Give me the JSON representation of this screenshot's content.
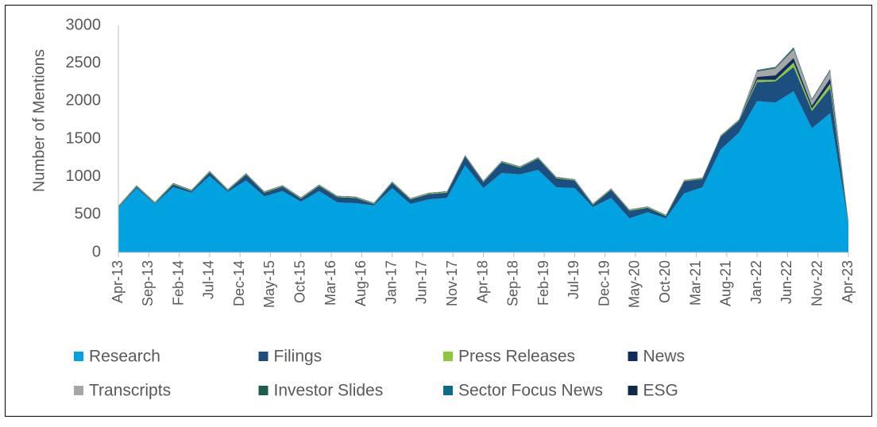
{
  "chart_data": {
    "type": "stacked-area",
    "y_label": "Number of Mentions",
    "x": [
      "2013-04",
      "2013-07",
      "2013-10",
      "2014-01",
      "2014-04",
      "2014-07",
      "2014-10",
      "2015-01",
      "2015-04",
      "2015-07",
      "2015-10",
      "2016-01",
      "2016-04",
      "2016-07",
      "2016-10",
      "2017-01",
      "2017-04",
      "2017-07",
      "2017-10",
      "2018-01",
      "2018-04",
      "2018-07",
      "2018-10",
      "2019-01",
      "2019-04",
      "2019-07",
      "2019-10",
      "2020-01",
      "2020-04",
      "2020-07",
      "2020-10",
      "2021-01",
      "2021-04",
      "2021-07",
      "2021-10",
      "2022-01",
      "2022-04",
      "2022-07",
      "2022-10",
      "2023-01",
      "2023-04"
    ],
    "xlim": [
      "2013-04",
      "2023-04"
    ],
    "xticks": [
      {
        "value": "2013-04",
        "label": "Apr-13"
      },
      {
        "value": "2013-09",
        "label": "Sep-13"
      },
      {
        "value": "2014-02",
        "label": "Feb-14"
      },
      {
        "value": "2014-07",
        "label": "Jul-14"
      },
      {
        "value": "2014-12",
        "label": "Dec-14"
      },
      {
        "value": "2015-05",
        "label": "May-15"
      },
      {
        "value": "2015-10",
        "label": "Oct-15"
      },
      {
        "value": "2016-03",
        "label": "Mar-16"
      },
      {
        "value": "2016-08",
        "label": "Aug-16"
      },
      {
        "value": "2017-01",
        "label": "Jan-17"
      },
      {
        "value": "2017-06",
        "label": "Jun-17"
      },
      {
        "value": "2017-11",
        "label": "Nov-17"
      },
      {
        "value": "2018-04",
        "label": "Apr-18"
      },
      {
        "value": "2018-09",
        "label": "Sep-18"
      },
      {
        "value": "2019-02",
        "label": "Feb-19"
      },
      {
        "value": "2019-07",
        "label": "Jul-19"
      },
      {
        "value": "2019-12",
        "label": "Dec-19"
      },
      {
        "value": "2020-05",
        "label": "May-20"
      },
      {
        "value": "2020-10",
        "label": "Oct-20"
      },
      {
        "value": "2021-03",
        "label": "Mar-21"
      },
      {
        "value": "2021-08",
        "label": "Aug-21"
      },
      {
        "value": "2022-01",
        "label": "Jan-22"
      },
      {
        "value": "2022-06",
        "label": "Jun-22"
      },
      {
        "value": "2022-11",
        "label": "Nov-22"
      },
      {
        "value": "2023-04",
        "label": "Apr-23"
      }
    ],
    "ylim": [
      0,
      3000
    ],
    "yticks": [
      0,
      500,
      1000,
      1500,
      2000,
      2500,
      3000
    ],
    "grid": false,
    "legend": "bottom",
    "series": [
      {
        "name": "Research",
        "color": "#00a3e0",
        "values": [
          590,
          850,
          640,
          860,
          790,
          1010,
          800,
          950,
          740,
          810,
          670,
          810,
          660,
          650,
          620,
          850,
          640,
          700,
          720,
          1150,
          850,
          1050,
          1030,
          1090,
          860,
          850,
          600,
          720,
          450,
          530,
          450,
          780,
          860,
          1360,
          1580,
          2000,
          1980,
          2130,
          1640,
          1840,
          380
        ]
      },
      {
        "name": "Filings",
        "color": "#1c4e80",
        "values": [
          10,
          20,
          10,
          40,
          20,
          50,
          20,
          80,
          50,
          60,
          40,
          70,
          70,
          70,
          20,
          70,
          60,
          70,
          70,
          120,
          80,
          140,
          90,
          150,
          120,
          100,
          30,
          110,
          100,
          60,
          30,
          160,
          110,
          170,
          160,
          250,
          280,
          320,
          230,
          330,
          20
        ]
      },
      {
        "name": "Press Releases",
        "color": "#8dc63f",
        "values": [
          10,
          10,
          10,
          10,
          10,
          10,
          10,
          10,
          10,
          10,
          10,
          10,
          10,
          10,
          10,
          10,
          10,
          10,
          10,
          10,
          10,
          10,
          10,
          10,
          10,
          10,
          10,
          10,
          10,
          10,
          10,
          10,
          10,
          10,
          10,
          30,
          20,
          60,
          30,
          60,
          10
        ]
      },
      {
        "name": "News",
        "color": "#0e2d5e",
        "values": [
          5,
          5,
          5,
          5,
          5,
          5,
          5,
          5,
          5,
          5,
          5,
          5,
          5,
          5,
          5,
          5,
          5,
          5,
          5,
          5,
          5,
          5,
          5,
          5,
          5,
          5,
          5,
          5,
          5,
          5,
          5,
          5,
          5,
          5,
          5,
          40,
          60,
          60,
          40,
          70,
          5
        ]
      },
      {
        "name": "Transcripts",
        "color": "#a6a6a6",
        "values": [
          5,
          5,
          5,
          5,
          5,
          5,
          5,
          5,
          5,
          5,
          5,
          5,
          5,
          5,
          5,
          5,
          5,
          5,
          5,
          5,
          5,
          5,
          5,
          5,
          5,
          5,
          5,
          5,
          5,
          5,
          5,
          5,
          5,
          5,
          5,
          70,
          90,
          110,
          70,
          100,
          5
        ]
      },
      {
        "name": "Investor Slides",
        "color": "#1b5e4f",
        "values": [
          0,
          0,
          0,
          0,
          0,
          0,
          0,
          0,
          0,
          0,
          0,
          0,
          0,
          0,
          0,
          0,
          0,
          0,
          0,
          0,
          0,
          0,
          0,
          0,
          0,
          0,
          0,
          0,
          0,
          0,
          0,
          0,
          0,
          0,
          0,
          10,
          10,
          15,
          10,
          10,
          0
        ]
      },
      {
        "name": "Sector Focus News",
        "color": "#0e6a8c",
        "values": [
          0,
          0,
          0,
          0,
          0,
          0,
          0,
          0,
          0,
          0,
          0,
          0,
          0,
          0,
          0,
          0,
          0,
          0,
          0,
          0,
          0,
          0,
          0,
          0,
          0,
          0,
          0,
          0,
          0,
          0,
          0,
          0,
          0,
          0,
          0,
          5,
          5,
          10,
          5,
          5,
          0
        ]
      },
      {
        "name": "ESG",
        "color": "#0d2a4a",
        "values": [
          0,
          0,
          0,
          0,
          0,
          0,
          0,
          0,
          0,
          0,
          0,
          0,
          0,
          0,
          0,
          0,
          0,
          0,
          0,
          0,
          0,
          0,
          0,
          0,
          0,
          0,
          0,
          0,
          0,
          0,
          0,
          0,
          0,
          0,
          0,
          5,
          5,
          5,
          5,
          5,
          0
        ]
      }
    ]
  }
}
